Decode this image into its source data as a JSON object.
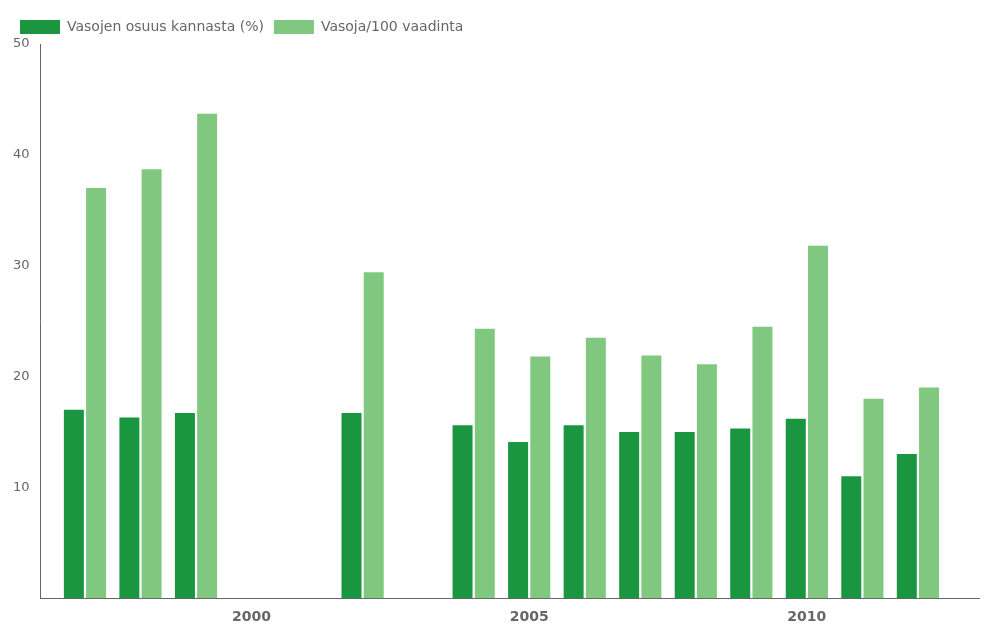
{
  "chart_data": {
    "type": "bar",
    "x": [
      1997,
      1998,
      1999,
      2002,
      2004,
      2005,
      2006,
      2007,
      2008,
      2009,
      2010,
      2011,
      2012
    ],
    "series": [
      {
        "name": "Vasojen osuus kannasta (%)",
        "color": "#1a9641",
        "values": [
          17.0,
          16.3,
          16.7,
          16.7,
          15.6,
          14.1,
          15.6,
          15.0,
          15.0,
          15.3,
          16.2,
          11.0,
          13.0
        ]
      },
      {
        "name": "Vasoja/100 vaadinta",
        "color": "#80c880",
        "values": [
          37.0,
          38.7,
          43.7,
          29.4,
          24.3,
          21.8,
          23.5,
          21.9,
          21.1,
          24.5,
          31.8,
          18.0,
          19.0
        ]
      }
    ],
    "xlim": [
      1996.2,
      2013.1
    ],
    "xticks": [
      2000,
      2005,
      2010
    ],
    "ylim": [
      0,
      50
    ],
    "yticks": [
      10,
      20,
      30,
      40,
      50
    ],
    "grid": false,
    "legend": "upper left"
  }
}
